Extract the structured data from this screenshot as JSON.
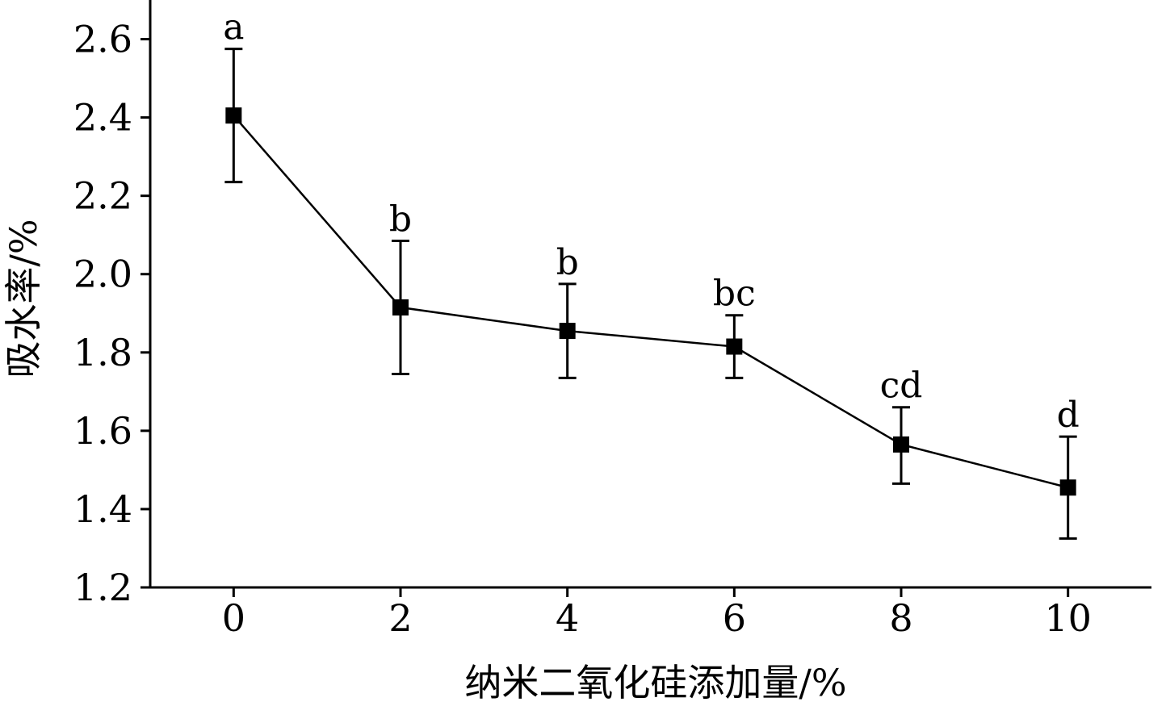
{
  "chart_data": {
    "type": "line",
    "title": "",
    "xlabel": "纳米二氧化硅添加量/%",
    "ylabel": "吸水率/%",
    "xlim": [
      -1,
      11
    ],
    "ylim": [
      1.2,
      2.7
    ],
    "x_ticks": [
      0,
      2,
      4,
      6,
      8,
      10
    ],
    "x_tick_labels": [
      "0",
      "2",
      "4",
      "6",
      "8",
      "10"
    ],
    "y_ticks": [
      1.2,
      1.4,
      1.6,
      1.8,
      2.0,
      2.2,
      2.4,
      2.6
    ],
    "y_tick_labels": [
      "1.2",
      "1.4",
      "1.6",
      "1.8",
      "2.0",
      "2.2",
      "2.4",
      "2.6"
    ],
    "grid": false,
    "legend": "none",
    "marker": "square",
    "color": "#000000",
    "points": [
      {
        "x": 0,
        "y": 2.405,
        "err_low": 2.235,
        "err_high": 2.575,
        "label": "a"
      },
      {
        "x": 2,
        "y": 1.915,
        "err_low": 1.745,
        "err_high": 2.085,
        "label": "b"
      },
      {
        "x": 4,
        "y": 1.855,
        "err_low": 1.735,
        "err_high": 1.975,
        "label": "b"
      },
      {
        "x": 6,
        "y": 1.815,
        "err_low": 1.735,
        "err_high": 1.895,
        "label": "bc"
      },
      {
        "x": 8,
        "y": 1.565,
        "err_low": 1.465,
        "err_high": 1.66,
        "label": "cd"
      },
      {
        "x": 10,
        "y": 1.455,
        "err_low": 1.325,
        "err_high": 1.585,
        "label": "d"
      }
    ]
  }
}
